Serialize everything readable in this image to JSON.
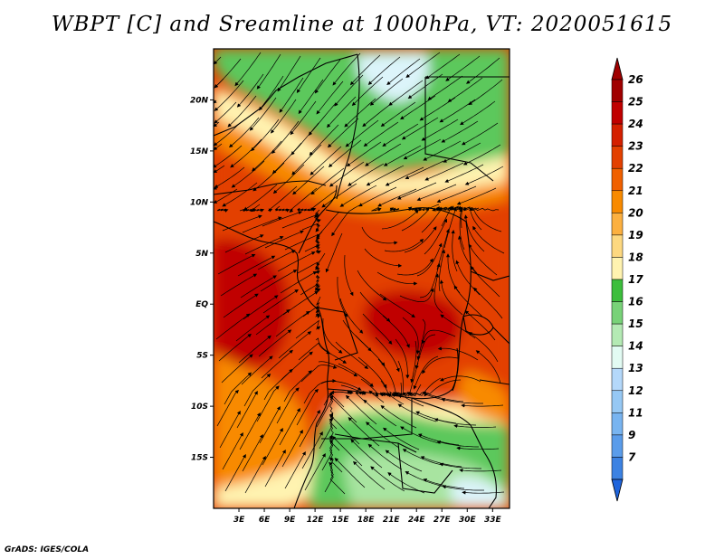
{
  "title": "WBPT [C] and Sreamline at 1000hPa, VT: 2020051615",
  "footer": "GrADS: IGES/COLA",
  "map": {
    "lon_range": [
      0,
      35
    ],
    "lat_range": [
      -20,
      25
    ],
    "lon_ticks": [
      {
        "value": 3,
        "label": "3E"
      },
      {
        "value": 6,
        "label": "6E"
      },
      {
        "value": 9,
        "label": "9E"
      },
      {
        "value": 12,
        "label": "12E"
      },
      {
        "value": 15,
        "label": "15E"
      },
      {
        "value": 18,
        "label": "18E"
      },
      {
        "value": 21,
        "label": "21E"
      },
      {
        "value": 24,
        "label": "24E"
      },
      {
        "value": 27,
        "label": "27E"
      },
      {
        "value": 30,
        "label": "30E"
      },
      {
        "value": 33,
        "label": "33E"
      }
    ],
    "lat_ticks": [
      {
        "value": 20,
        "label": "20N"
      },
      {
        "value": 15,
        "label": "15N"
      },
      {
        "value": 10,
        "label": "10N"
      },
      {
        "value": 5,
        "label": "5N"
      },
      {
        "value": 0,
        "label": "EQ"
      },
      {
        "value": -5,
        "label": "5S"
      },
      {
        "value": -10,
        "label": "10S"
      },
      {
        "value": -15,
        "label": "15S"
      }
    ]
  },
  "colorbar": {
    "levels": [
      {
        "label": "26",
        "color": "#a00000"
      },
      {
        "label": "25",
        "color": "#c00000"
      },
      {
        "label": "24",
        "color": "#d42000"
      },
      {
        "label": "23",
        "color": "#e34000"
      },
      {
        "label": "22",
        "color": "#f06000"
      },
      {
        "label": "21",
        "color": "#f88a00"
      },
      {
        "label": "20",
        "color": "#fcb040"
      },
      {
        "label": "19",
        "color": "#fdd880"
      },
      {
        "label": "18",
        "color": "#fff3b0"
      },
      {
        "label": "17",
        "color": "#3cbe3c"
      },
      {
        "label": "16",
        "color": "#78d278"
      },
      {
        "label": "15",
        "color": "#b4eab4"
      },
      {
        "label": "14",
        "color": "#e2fbf3"
      },
      {
        "label": "13",
        "color": "#b4d8fa"
      },
      {
        "label": "12",
        "color": "#96c8f4"
      },
      {
        "label": "11",
        "color": "#78b4f0"
      },
      {
        "label": "9",
        "color": "#5a9cea"
      },
      {
        "label": "7",
        "color": "#3c82e2"
      }
    ],
    "bottom_color": "#1e64dc"
  },
  "colors": {
    "green_north": "#5cc85c",
    "light_green": "#a8e4a0",
    "pale_blue": "#dcf4fa",
    "yellow": "#fff3b0",
    "orange": "#f88a00",
    "red": "#e34000",
    "dark_red": "#c00000"
  }
}
